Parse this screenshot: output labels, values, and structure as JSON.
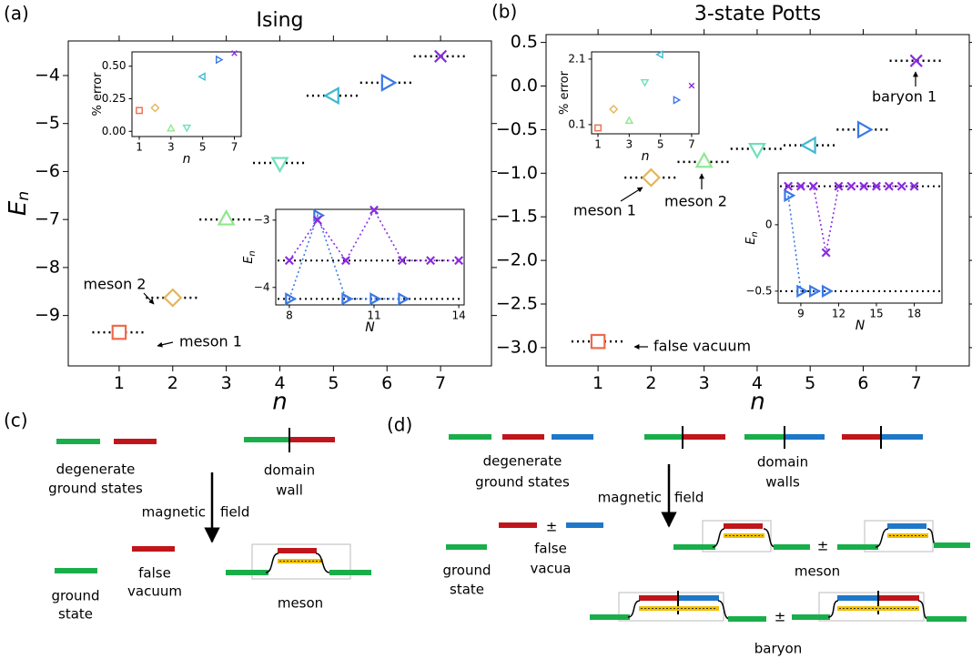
{
  "chart_data": [
    {
      "type": "scatter",
      "panel": "(a)",
      "title": "Ising",
      "xlabel": "n",
      "ylabel": {
        "text": "E",
        "sub": "n"
      },
      "x": [
        1,
        2,
        3,
        4,
        5,
        6,
        7
      ],
      "levels": true,
      "series": [
        {
          "values": [
            -9.35,
            -8.63,
            -7.0,
            -5.82,
            -4.42,
            -4.15,
            -3.6
          ],
          "colors": [
            "#ee6a4a",
            "#e5b45a",
            "#8ee88e",
            "#6ee0b8",
            "#3fb8d0",
            "#3a78e6",
            "#8a2be2"
          ],
          "markers": [
            "square",
            "diamond",
            "triangle-up",
            "triangle-down",
            "triangle-left",
            "triangle-right",
            "x"
          ]
        }
      ],
      "xlim": [
        0.05,
        7.95
      ],
      "ylim": [
        -10.05,
        -3.28
      ],
      "xticks": [
        1,
        2,
        3,
        4,
        5,
        6,
        7
      ],
      "yticks": [
        {
          "value": -9,
          "label": "−9"
        },
        {
          "value": -8,
          "label": "−8"
        },
        {
          "value": -7,
          "label": "−7"
        },
        {
          "value": -6,
          "label": "−6"
        },
        {
          "value": -5,
          "label": "−5"
        },
        {
          "value": -4,
          "label": "−4"
        }
      ],
      "annotations": [
        "meson 2",
        "meson 1"
      ]
    },
    {
      "type": "scatter",
      "xlabel": "n",
      "ylabel": {
        "text": "% error"
      },
      "x": [
        1,
        2,
        3,
        4,
        5,
        6,
        7
      ],
      "series": [
        {
          "values": [
            0.16,
            0.18,
            0.02,
            0.03,
            0.42,
            0.55,
            0.6
          ],
          "colors": [
            "#ee6a4a",
            "#e5b45a",
            "#8ee88e",
            "#6ee0b8",
            "#3fb8d0",
            "#3a78e6",
            "#8a2be2"
          ],
          "markers": [
            "square",
            "diamond",
            "triangle-up",
            "triangle-down",
            "triangle-left",
            "triangle-right",
            "x"
          ]
        }
      ],
      "xlim": [
        0.54,
        7.43
      ],
      "ylim": [
        -0.04,
        0.61
      ],
      "xticks": [
        1,
        3,
        5,
        7
      ],
      "yticks": [
        {
          "value": 0,
          "label": "0.00"
        },
        {
          "value": 0.25,
          "label": "0.25"
        },
        {
          "value": 0.5,
          "label": "0.50"
        }
      ]
    },
    {
      "type": "line",
      "xlabel": "N",
      "ylabel": {
        "text": "E",
        "sub": "n"
      },
      "series": [
        {
          "color": "#3a78e6",
          "marker": "triangle-right",
          "x": [
            8,
            9,
            10,
            11,
            12
          ],
          "values": [
            -4.17,
            -2.93,
            -4.17,
            -4.17,
            -4.17
          ]
        },
        {
          "color": "#8a2be2",
          "marker": "x",
          "x": [
            8,
            9,
            10,
            11,
            12,
            13,
            14
          ],
          "values": [
            -3.6,
            -3.0,
            -3.6,
            -2.85,
            -3.6,
            -3.6,
            -3.6
          ]
        }
      ],
      "hlines": [
        -3.6,
        -4.17
      ],
      "xlim": [
        7.52,
        14.19
      ],
      "ylim": [
        -4.26,
        -2.84
      ],
      "xticks": [
        8,
        11,
        14
      ],
      "yticks": [
        {
          "value": -3,
          "label": "−3"
        },
        {
          "value": -4,
          "label": "−4"
        }
      ]
    },
    {
      "type": "scatter",
      "panel": "(b)",
      "title": "3-state Potts",
      "xlabel": "n",
      "x": [
        1,
        2,
        3,
        4,
        5,
        6,
        7
      ],
      "levels": true,
      "series": [
        {
          "values": [
            -2.93,
            -1.05,
            -0.87,
            -0.72,
            -0.68,
            -0.5,
            0.29
          ],
          "colors": [
            "#ee6a4a",
            "#e5b45a",
            "#8ee88e",
            "#6ee0b8",
            "#3fb8d0",
            "#3a78e6",
            "#8a2be2"
          ],
          "markers": [
            "square",
            "diamond",
            "triangle-up",
            "triangle-down",
            "triangle-left",
            "triangle-right",
            "x"
          ]
        }
      ],
      "xlim": [
        0.02,
        8.0
      ],
      "ylim": [
        -3.21,
        0.59
      ],
      "xticks": [
        1,
        2,
        3,
        4,
        5,
        6,
        7
      ],
      "yticks": [
        0.5,
        {
          "value": 0,
          "label": "0.0"
        },
        {
          "value": -0.5,
          "label": "−0.5"
        },
        {
          "value": -1,
          "label": "−1.0"
        },
        {
          "value": -1.5,
          "label": "−1.5"
        },
        {
          "value": -2,
          "label": "−2.0"
        },
        {
          "value": -2.5,
          "label": "−2.5"
        },
        {
          "value": -3,
          "label": "−3.0"
        }
      ],
      "annotations": [
        "meson 1",
        "meson 2",
        "baryon 1",
        "false vacuum"
      ]
    },
    {
      "type": "scatter",
      "xlabel": "n",
      "ylabel": {
        "text": "% error"
      },
      "x": [
        1,
        2,
        3,
        4,
        5,
        6,
        7
      ],
      "series": [
        {
          "values": [
            0.0,
            0.57,
            0.21,
            1.4,
            2.24,
            0.85,
            1.29
          ],
          "colors": [
            "#ee6a4a",
            "#e5b45a",
            "#8ee88e",
            "#6ee0b8",
            "#3fb8d0",
            "#3a78e6",
            "#8a2be2"
          ],
          "markers": [
            "square",
            "diamond",
            "triangle-up",
            "triangle-down",
            "triangle-left",
            "triangle-right",
            "x"
          ]
        }
      ],
      "xlim": [
        0.59,
        7.47
      ],
      "ylim": [
        -0.18,
        2.32
      ],
      "xticks": [
        1,
        3,
        5,
        7
      ],
      "yticks": [
        0.1,
        2.1
      ]
    },
    {
      "type": "line",
      "xlabel": "N",
      "ylabel": {
        "text": "E",
        "sub": "n"
      },
      "series": [
        {
          "color": "#3a78e6",
          "marker": "triangle-right",
          "x": [
            8,
            9,
            10,
            11
          ],
          "values": [
            0.22,
            -0.5,
            -0.5,
            -0.5
          ]
        },
        {
          "color": "#8a2be2",
          "marker": "x",
          "x": [
            8,
            9,
            10,
            11,
            12,
            13,
            14,
            15,
            16,
            17,
            18
          ],
          "values": [
            0.29,
            0.29,
            0.29,
            -0.21,
            0.29,
            0.29,
            0.29,
            0.29,
            0.29,
            0.29,
            0.29
          ]
        }
      ],
      "hlines": [
        0.29,
        -0.5
      ],
      "xlim": [
        7.2,
        20.2
      ],
      "ylim": [
        -0.59,
        0.39
      ],
      "xticks": [
        9,
        12,
        15,
        18
      ],
      "yticks": [
        0,
        {
          "value": -0.5,
          "label": "−0.5"
        }
      ]
    }
  ],
  "diagram_c": {
    "panel": "(c)",
    "texts": [
      "degenerate",
      "ground states",
      "domain",
      "wall",
      "magnetic",
      "field",
      "ground",
      "state",
      "false",
      "vacuum",
      "meson"
    ]
  },
  "diagram_d": {
    "panel": "(d)",
    "texts": [
      "degenerate",
      "ground states",
      "domain",
      "walls",
      "magnetic",
      "field",
      "ground",
      "state",
      "±",
      "false",
      "vacua",
      "±",
      "meson",
      "±",
      "baryon"
    ]
  }
}
